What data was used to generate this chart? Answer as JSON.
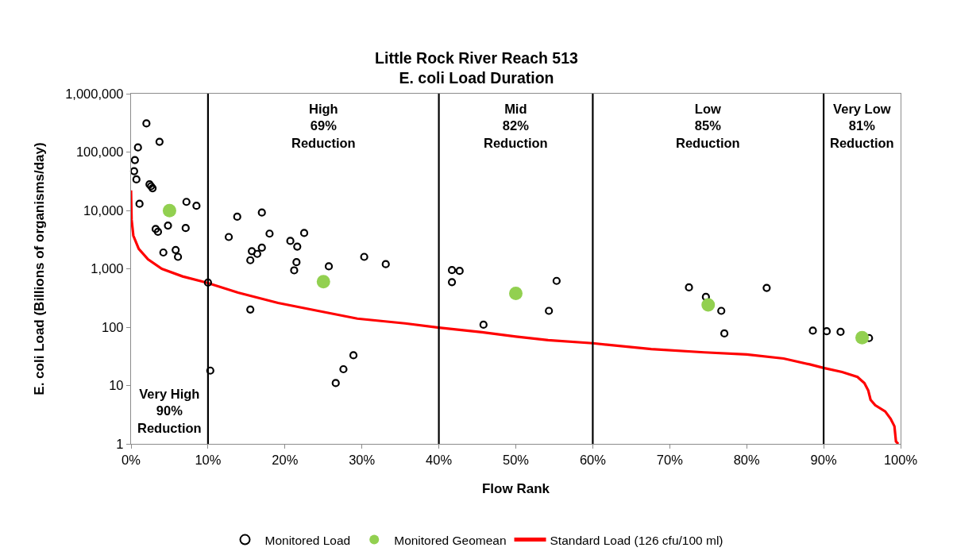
{
  "chart_data": {
    "type": "scatter",
    "title": "Little Rock River Reach 513\nE. coli Load Duration",
    "xlabel": "Flow Rank",
    "ylabel": "E. coli Load (Billions of organisms/day)",
    "log": "y",
    "grid": false,
    "legend": "bottom",
    "xlim": [
      0,
      100
    ],
    "xticks": [
      {
        "value": 0,
        "label": "0%"
      },
      {
        "value": 10,
        "label": "10%"
      },
      {
        "value": 20,
        "label": "20%"
      },
      {
        "value": 30,
        "label": "30%"
      },
      {
        "value": 40,
        "label": "40%"
      },
      {
        "value": 50,
        "label": "50%"
      },
      {
        "value": 60,
        "label": "60%"
      },
      {
        "value": 70,
        "label": "70%"
      },
      {
        "value": 80,
        "label": "80%"
      },
      {
        "value": 90,
        "label": "90%"
      },
      {
        "value": 100,
        "label": "100%"
      }
    ],
    "ylim": [
      1,
      1000000
    ],
    "yticks": [
      1,
      10,
      100,
      {
        "value": 1000,
        "label": "1,000"
      },
      {
        "value": 10000,
        "label": "10,000"
      },
      {
        "value": 100000,
        "label": "100,000"
      },
      {
        "value": 1000000,
        "label": "1,000,000"
      }
    ],
    "series": [
      {
        "name": "Monitored Load",
        "color": "#000000",
        "marker": "circle",
        "x": [
          2.0,
          3.7,
          0.9,
          0.5,
          0.4,
          0.7,
          2.4,
          2.6,
          2.8,
          1.1,
          7.2,
          8.5,
          3.2,
          3.5,
          4.8,
          7.1,
          4.2,
          5.8,
          6.1,
          10.0,
          13.8,
          17.0,
          12.7,
          18.0,
          17.0,
          15.7,
          16.4,
          15.5,
          22.5,
          20.7,
          21.6,
          21.5,
          21.2,
          25.7,
          30.3,
          33.1,
          15.5,
          10.3,
          28.9,
          27.6,
          26.6,
          41.7,
          42.7,
          41.7,
          55.3,
          54.3,
          45.8,
          72.5,
          74.7,
          76.7,
          77.1,
          82.6,
          88.6,
          90.4,
          92.2,
          95.9
        ],
        "values": [
          310000,
          150000,
          120000,
          73000,
          47000,
          34000,
          28000,
          26000,
          24000,
          13000,
          14000,
          12000,
          4800,
          4300,
          5500,
          5000,
          1900,
          2100,
          1600,
          580,
          7800,
          9200,
          3500,
          4000,
          2300,
          2000,
          1800,
          1400,
          4100,
          3000,
          2400,
          1300,
          940,
          1100,
          1600,
          1200,
          200,
          18,
          33,
          19,
          11,
          950,
          920,
          590,
          620,
          190,
          110,
          480,
          330,
          190,
          78,
          470,
          87,
          85,
          83,
          65
        ]
      },
      {
        "name": "Monitored Geomean",
        "color": "#92d050",
        "marker": "circle",
        "x": [
          5,
          25,
          50,
          75,
          95
        ],
        "values": [
          9900,
          600,
          380,
          240,
          66
        ]
      },
      {
        "name": "Standard Load (126 cfu/100 ml)",
        "type": "line",
        "color": "#ff0000",
        "marker": "none",
        "x": [
          0,
          0.07,
          0.3,
          1.0,
          2.2,
          4.0,
          6.7,
          10,
          13.9,
          19.1,
          24.3,
          29.4,
          35.6,
          40,
          45.6,
          50,
          54.2,
          60,
          67.6,
          74.5,
          80,
          84.8,
          88.2,
          90,
          92.4,
          94.4,
          95.3,
          95.8,
          96.1,
          96.7,
          98.0,
          98.7,
          99.2,
          99.4,
          99.7
        ],
        "values": [
          22000,
          7000,
          3700,
          2200,
          1450,
          1000,
          740,
          570,
          390,
          260,
          190,
          140,
          116,
          98,
          82,
          69,
          60,
          53,
          42,
          37,
          34,
          29,
          23,
          20,
          17,
          14,
          11,
          8.2,
          5.7,
          4.6,
          3.6,
          2.7,
          2.0,
          1.1,
          1.0
        ]
      }
    ],
    "ref_lines": [
      {
        "axis": "x",
        "value": 10,
        "color": "#000000"
      },
      {
        "axis": "x",
        "value": 40,
        "color": "#000000"
      },
      {
        "axis": "x",
        "value": 60,
        "color": "#000000"
      },
      {
        "axis": "x",
        "value": 90,
        "color": "#000000"
      }
    ],
    "annotations": [
      "Very High\n90%\nReduction",
      "High\n69%\nReduction",
      "Mid\n82%\nReduction",
      "Low\n85%\nReduction",
      "Very Low\n81%\nReduction"
    ]
  }
}
